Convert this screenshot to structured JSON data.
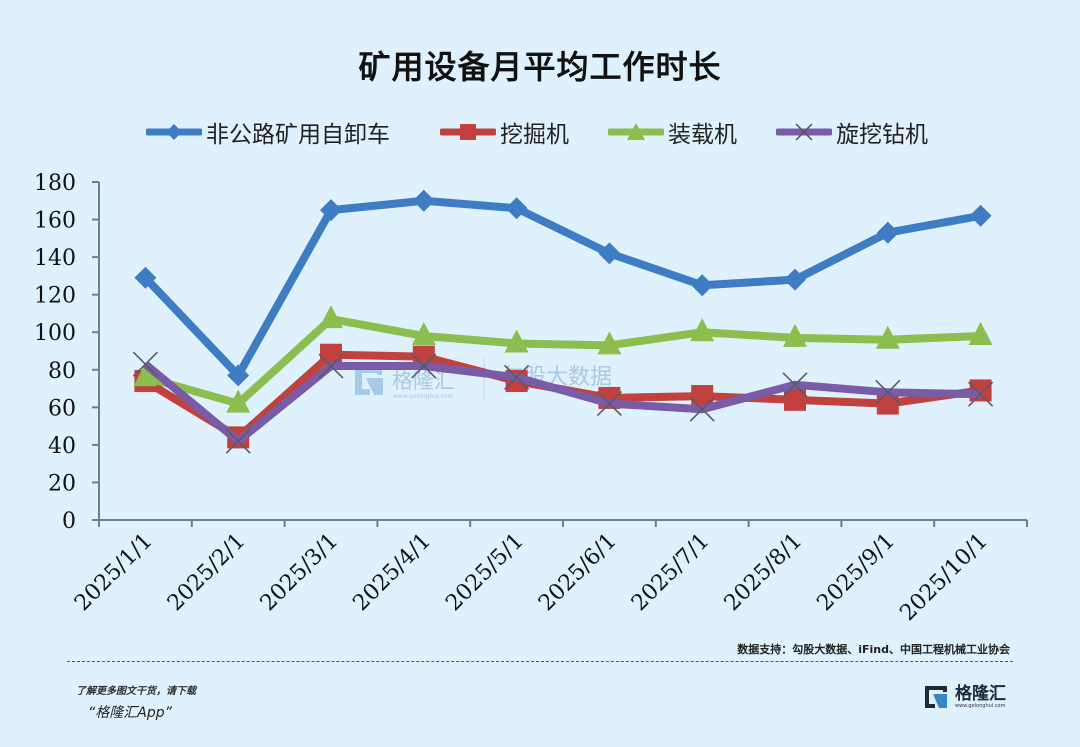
{
  "title": "矿用设备月平均工作时长",
  "legend": [
    {
      "label": "非公路矿用自卸车",
      "color": "#3e7cc4",
      "marker": "diamond"
    },
    {
      "label": "挖掘机",
      "color": "#c0413d",
      "marker": "square"
    },
    {
      "label": "装载机",
      "color": "#8cbe4f",
      "marker": "triangle"
    },
    {
      "label": "旋挖钻机",
      "color": "#7a5ba8",
      "marker": "x"
    }
  ],
  "watermark": {
    "brand": "格隆汇",
    "url": "www.gelonghui.com",
    "partner": "勾股大数据"
  },
  "footer": {
    "source": "数据支持：勾股大数据、iFind、中国工程机械工业协会",
    "promo_line1": "了解更多图文干货，请下载",
    "promo_line2": "“格隆汇App”",
    "brand_name": "格隆汇",
    "brand_url": "www.gelonghui.com"
  },
  "chart_data": {
    "type": "line",
    "title": "矿用设备月平均工作时长",
    "xlabel": "",
    "ylabel": "",
    "categories": [
      "2025/1/1",
      "2025/2/1",
      "2025/3/1",
      "2025/4/1",
      "2025/5/1",
      "2025/6/1",
      "2025/7/1",
      "2025/8/1",
      "2025/9/1",
      "2025/10/1"
    ],
    "series": [
      {
        "name": "非公路矿用自卸车",
        "color": "#3e7cc4",
        "marker": "diamond",
        "values": [
          129,
          77,
          165,
          170,
          166,
          142,
          125,
          128,
          153,
          162
        ]
      },
      {
        "name": "挖掘机",
        "color": "#c0413d",
        "marker": "square",
        "values": [
          74,
          44,
          88,
          87,
          74,
          65,
          66,
          64,
          62,
          69
        ]
      },
      {
        "name": "装载机",
        "color": "#8cbe4f",
        "marker": "triangle",
        "values": [
          76,
          62,
          107,
          98,
          94,
          93,
          100,
          97,
          96,
          98
        ]
      },
      {
        "name": "旋挖钻机",
        "color": "#7a5ba8",
        "marker": "x",
        "values": [
          83,
          42,
          82,
          82,
          76,
          62,
          59,
          72,
          68,
          67
        ]
      }
    ],
    "ylim": [
      0,
      180
    ],
    "yticks": [
      0,
      20,
      40,
      60,
      80,
      100,
      120,
      140,
      160,
      180
    ],
    "grid": false,
    "legend_position": "top"
  }
}
